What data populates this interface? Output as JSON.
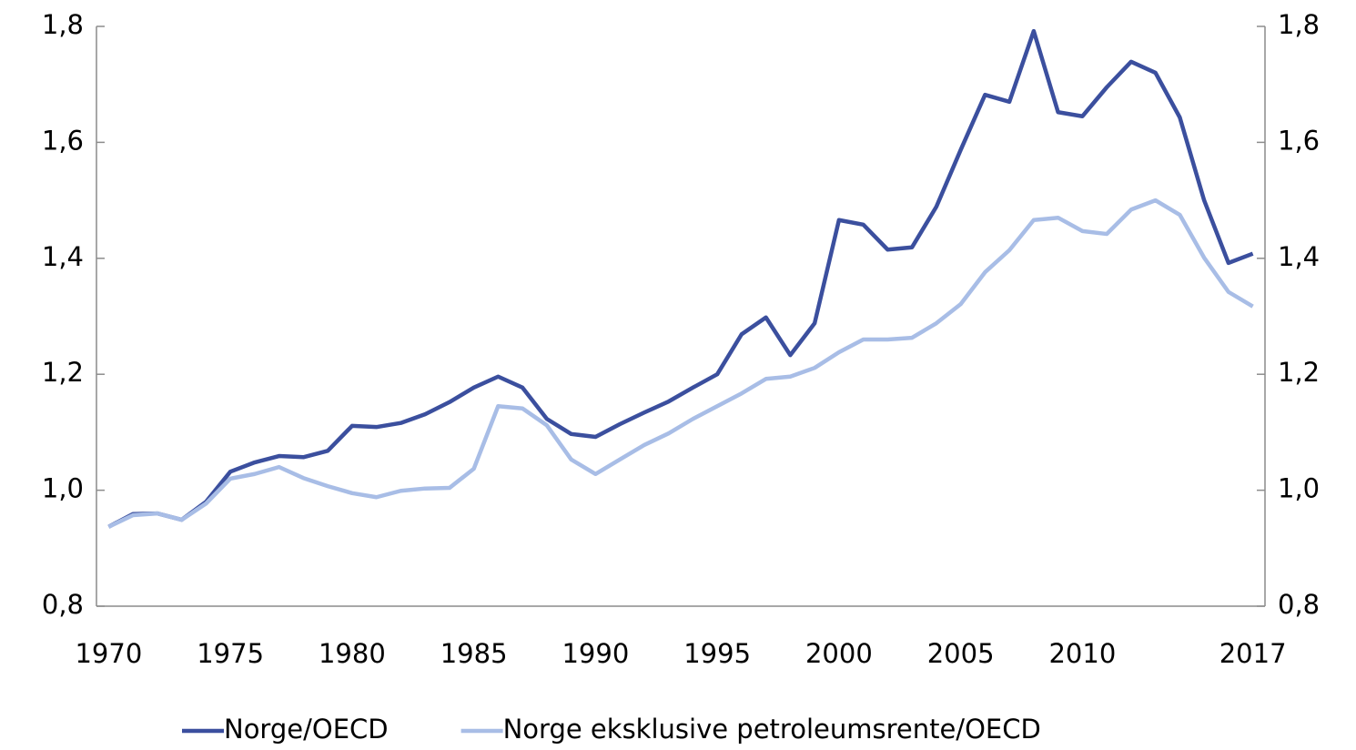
{
  "chart_data": {
    "type": "line",
    "x": [
      1970,
      1971,
      1972,
      1973,
      1974,
      1975,
      1976,
      1977,
      1978,
      1979,
      1980,
      1981,
      1982,
      1983,
      1984,
      1985,
      1986,
      1987,
      1988,
      1989,
      1990,
      1991,
      1992,
      1993,
      1994,
      1995,
      1996,
      1997,
      1998,
      1999,
      2000,
      2001,
      2002,
      2003,
      2004,
      2005,
      2006,
      2007,
      2008,
      2009,
      2010,
      2011,
      2012,
      2013,
      2014,
      2015,
      2016,
      2017
    ],
    "xlim": [
      1969.5,
      2017.5
    ],
    "xticks": [
      1970,
      1975,
      1980,
      1985,
      1990,
      1995,
      2000,
      2005,
      2010,
      2017
    ],
    "ylim": [
      0.8,
      1.8
    ],
    "yticks": [
      {
        "value": 0.8,
        "label": "0,8"
      },
      {
        "value": 1.0,
        "label": "1,0"
      },
      {
        "value": 1.2,
        "label": "1,2"
      },
      {
        "value": 1.4,
        "label": "1,4"
      },
      {
        "value": 1.6,
        "label": "1,6"
      },
      {
        "value": 1.8,
        "label": "1,8"
      }
    ],
    "y2lim": [
      0.8,
      1.8
    ],
    "y2ticks": [
      {
        "value": 0.8,
        "label": "0,8"
      },
      {
        "value": 1.0,
        "label": "1,0"
      },
      {
        "value": 1.2,
        "label": "1,2"
      },
      {
        "value": 1.4,
        "label": "1,4"
      },
      {
        "value": 1.6,
        "label": "1,6"
      },
      {
        "value": 1.8,
        "label": "1,8"
      }
    ],
    "grid": false,
    "legend": "bottom",
    "series": [
      {
        "name": "Norge/OECD",
        "color": "#3b4f9e",
        "values": [
          0.937,
          0.959,
          0.96,
          0.949,
          0.98,
          1.032,
          1.048,
          1.059,
          1.057,
          1.068,
          1.111,
          1.109,
          1.116,
          1.131,
          1.152,
          1.177,
          1.196,
          1.177,
          1.123,
          1.097,
          1.092,
          1.114,
          1.134,
          1.153,
          1.177,
          1.2,
          1.269,
          1.298,
          1.233,
          1.288,
          1.466,
          1.458,
          1.415,
          1.419,
          1.489,
          1.587,
          1.682,
          1.67,
          1.792,
          1.652,
          1.645,
          1.695,
          1.739,
          1.72,
          1.643,
          1.5,
          1.392,
          1.408
        ]
      },
      {
        "name": "Norge eksklusive petroleumsrente/OECD",
        "color": "#a8bde6",
        "values": [
          0.937,
          0.957,
          0.96,
          0.949,
          0.977,
          1.02,
          1.028,
          1.04,
          1.021,
          1.007,
          0.995,
          0.988,
          0.999,
          1.003,
          1.004,
          1.037,
          1.145,
          1.141,
          1.112,
          1.053,
          1.028,
          1.053,
          1.078,
          1.098,
          1.123,
          1.145,
          1.167,
          1.192,
          1.196,
          1.211,
          1.238,
          1.26,
          1.26,
          1.263,
          1.288,
          1.321,
          1.376,
          1.414,
          1.466,
          1.47,
          1.447,
          1.442,
          1.484,
          1.5,
          1.475,
          1.401,
          1.342,
          1.317
        ]
      }
    ]
  }
}
